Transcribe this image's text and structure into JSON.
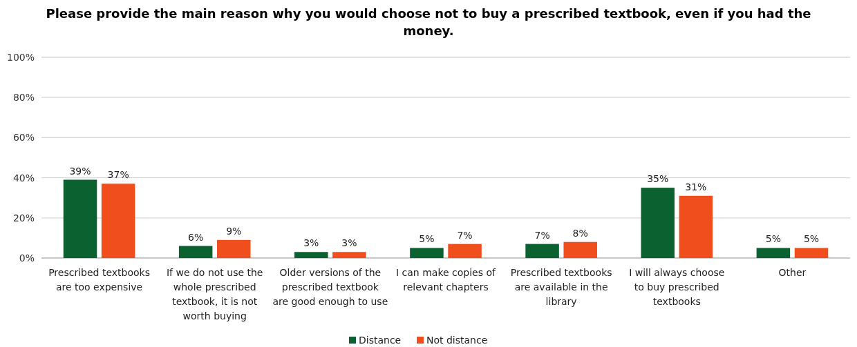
{
  "chart_data": {
    "type": "bar",
    "title": "Please provide the main reason why you would choose not to buy a prescribed textbook, even if you had the money.",
    "categories": [
      "Prescribed textbooks are too expensive",
      "If we do not use the whole prescribed textbook, it is not worth buying",
      "Older versions of the prescribed textbook are good enough to use",
      "I can make copies of relevant chapters",
      "Prescribed textbooks are available in the library",
      "I will always choose to buy prescribed textbooks",
      "Other"
    ],
    "series": [
      {
        "name": "Distance",
        "color": "#0b6130",
        "values": [
          39,
          6,
          3,
          5,
          7,
          35,
          5
        ],
        "value_labels": [
          "39%",
          "6%",
          "3%",
          "5%",
          "7%",
          "35%",
          "5%"
        ]
      },
      {
        "name": "Not distance",
        "color": "#f04e1d",
        "values": [
          37,
          9,
          3,
          7,
          8,
          31,
          5
        ],
        "value_labels": [
          "37%",
          "9%",
          "3%",
          "7%",
          "8%",
          "31%",
          "5%"
        ]
      }
    ],
    "ylim": [
      0,
      100
    ],
    "yticks": [
      {
        "value": 0,
        "label": "0%"
      },
      {
        "value": 20,
        "label": "20%"
      },
      {
        "value": 40,
        "label": "40%"
      },
      {
        "value": 60,
        "label": "60%"
      },
      {
        "value": 80,
        "label": "80%"
      },
      {
        "value": 100,
        "label": "100%"
      }
    ],
    "grid": "y",
    "legend": "bottom"
  }
}
